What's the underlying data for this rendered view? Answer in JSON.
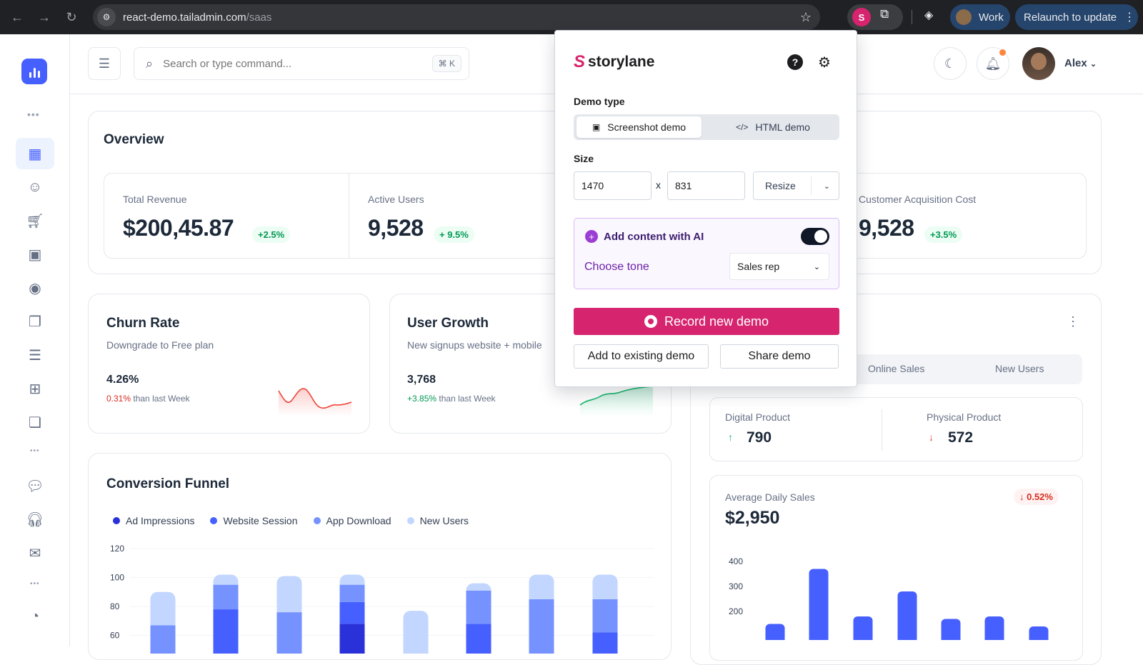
{
  "browser": {
    "url_host": "react-demo.tailadmin.com",
    "url_path": "/saas",
    "profile_label": "Work",
    "relaunch_label": "Relaunch to update"
  },
  "header": {
    "search_placeholder": "Search or type command...",
    "search_shortcut": "⌘ K",
    "user_name": "Alex"
  },
  "overview": {
    "title": "Overview",
    "metrics": [
      {
        "label": "Total Revenue",
        "value": "$200,45.87",
        "change": "+2.5%"
      },
      {
        "label": "Active Users",
        "value": "9,528",
        "change": "+ 9.5%"
      },
      {
        "label": "Customer Acquisition Cost",
        "value": "9,528",
        "change": "+3.5%"
      }
    ]
  },
  "churn": {
    "title": "Churn Rate",
    "subtitle": "Downgrade to Free plan",
    "value": "4.26%",
    "change": "0.31%",
    "change_suffix": "than last Week"
  },
  "growth": {
    "title": "User Growth",
    "subtitle": "New signups website + mobile",
    "value": "3,768",
    "change": "+3.85%",
    "change_suffix": "than last Week"
  },
  "funnel": {
    "title": "Conversion Funnel",
    "legend": [
      "Ad Impressions",
      "Website Session",
      "App Download",
      "New Users"
    ],
    "colors": [
      "#2a31d8",
      "#465fff",
      "#7592ff",
      "#c2d6ff"
    ]
  },
  "sales": {
    "tabs": [
      "Online Sales",
      "New Users"
    ],
    "digital_label": "Digital Product",
    "digital_value": "790",
    "physical_label": "Physical Product",
    "physical_value": "572",
    "avg_label": "Average Daily Sales",
    "avg_value": "$2,950",
    "avg_change": "↓ 0.52%"
  },
  "chart_data": [
    {
      "type": "bar",
      "stacked": true,
      "ylim": [
        60,
        120
      ],
      "yticks": [
        120,
        100,
        80,
        60
      ],
      "series_names": [
        "Ad Impressions",
        "Website Session",
        "App Download",
        "New Users"
      ],
      "stacks": [
        [
          0,
          0,
          67,
          90
        ],
        [
          0,
          78,
          95,
          102
        ],
        [
          0,
          0,
          76,
          101
        ],
        [
          68,
          83,
          95,
          102
        ],
        [
          0,
          0,
          0,
          77
        ],
        [
          0,
          68,
          91,
          96
        ],
        [
          0,
          0,
          85,
          102
        ],
        [
          0,
          62,
          85,
          102
        ]
      ]
    },
    {
      "type": "bar",
      "ylim": [
        100,
        400
      ],
      "yticks": [
        400,
        300,
        200
      ],
      "values": [
        150,
        370,
        180,
        280,
        170,
        180,
        140
      ]
    }
  ],
  "popup": {
    "brand": "storylane",
    "demo_type_label": "Demo type",
    "screenshot_label": "Screenshot demo",
    "html_label": "HTML demo",
    "size_label": "Size",
    "width": "1470",
    "height": "831",
    "x_label": "x",
    "resize_label": "Resize",
    "ai_label": "Add content with AI",
    "tone_label": "Choose tone",
    "tone_value": "Sales rep",
    "record_label": "Record new demo",
    "add_existing_label": "Add to existing demo",
    "share_label": "Share demo"
  }
}
